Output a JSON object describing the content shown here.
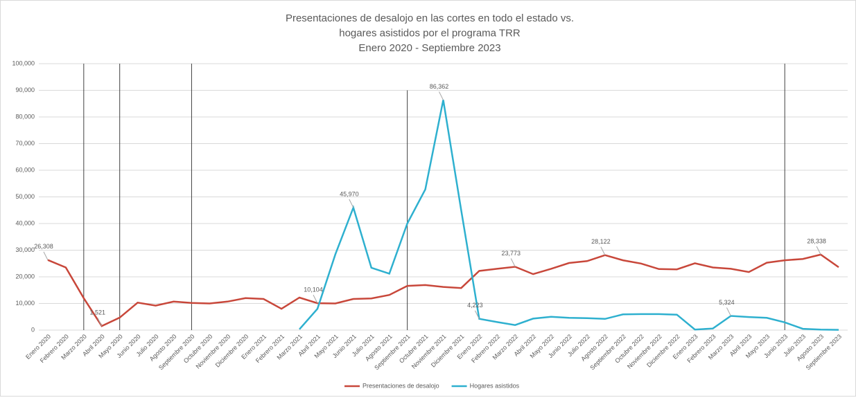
{
  "chart_data": {
    "type": "line",
    "title": [
      "Presentaciones de desalojo en las cortes en todo el estado vs.",
      "hogares asistidos por el programa TRR",
      "Enero 2020 - Septiembre 2023"
    ],
    "categories": [
      "Enero 2020",
      "Febrero 2020",
      "Marzo 2020",
      "Abril 2020",
      "Mayo 2020",
      "Junio 2020",
      "Julio 2020",
      "Agosto 2020",
      "Septiembre 2020",
      "Octubre 2020",
      "Noviembre 2020",
      "Diciembre 2020",
      "Enero 2021",
      "Febrero 2021",
      "Marzo 2021",
      "Abril 2021",
      "Mayo 2021",
      "Junio 2021",
      "Julio 2021",
      "Agosto 2021",
      "Septiembre 2021",
      "Octubre 2021",
      "Noviembre 2021",
      "Diciembre 2021",
      "Enero 2022",
      "Febrero 2022",
      "Marzo 2022",
      "Abril 2022",
      "Mayo 2022",
      "Junio 2022",
      "Julio 2022",
      "Agosto 2022",
      "Septiembre 2022",
      "Octubre 2022",
      "Noviembre 2022",
      "Diciembre 2022",
      "Enero 2023",
      "Febrero 2023",
      "Marzo 2023",
      "Abril 2023",
      "Mayo 2023",
      "Junio 2023",
      "Julio 2023",
      "Agosto 2023",
      "Septiembre 2023"
    ],
    "series": [
      {
        "name": "Presentaciones de desalojo",
        "color": "#c8473a",
        "values": [
          26308,
          23500,
          12000,
          1521,
          4700,
          10300,
          9200,
          10700,
          10200,
          10000,
          10700,
          12000,
          11700,
          8000,
          12200,
          10104,
          10000,
          11700,
          11900,
          13200,
          16600,
          16900,
          16200,
          15800,
          22200,
          23000,
          23773,
          21000,
          23000,
          25200,
          25900,
          28122,
          26200,
          25000,
          22900,
          22800,
          25100,
          23500,
          23000,
          21800,
          25300,
          26200,
          26700,
          28338,
          23600
        ],
        "value_labels": [
          "26,308",
          null,
          null,
          "1,521",
          null,
          null,
          null,
          null,
          null,
          null,
          null,
          null,
          null,
          null,
          null,
          "10,104",
          null,
          null,
          null,
          null,
          null,
          null,
          null,
          null,
          null,
          null,
          "23,773",
          null,
          null,
          null,
          null,
          "28,122",
          null,
          null,
          null,
          null,
          null,
          null,
          null,
          null,
          null,
          null,
          null,
          "28,338",
          null
        ]
      },
      {
        "name": "Hogares asistidos",
        "color": "#2eb0cf",
        "values": [
          null,
          null,
          null,
          null,
          null,
          null,
          null,
          null,
          null,
          null,
          null,
          null,
          null,
          null,
          300,
          8000,
          28500,
          45970,
          23400,
          21200,
          40000,
          52800,
          86362,
          45000,
          4223,
          3000,
          1900,
          4300,
          5000,
          4600,
          4500,
          4200,
          5900,
          6000,
          6000,
          5800,
          200,
          600,
          5324,
          4900,
          4600,
          2900,
          500,
          200,
          100
        ],
        "value_labels": [
          null,
          null,
          null,
          null,
          null,
          null,
          null,
          null,
          null,
          null,
          null,
          null,
          null,
          null,
          null,
          null,
          null,
          "45,970",
          null,
          null,
          null,
          null,
          "86,362",
          null,
          "4,223",
          null,
          null,
          null,
          null,
          null,
          null,
          null,
          null,
          null,
          null,
          null,
          null,
          null,
          "5,324",
          null,
          null,
          null,
          null,
          null,
          null
        ]
      }
    ],
    "reference_lines": [
      {
        "x": "Marzo 2020",
        "top": 100000
      },
      {
        "x": "Mayo 2020",
        "top": 100000
      },
      {
        "x": "Septiembre 2020",
        "top": 100000
      },
      {
        "x": "Septiembre 2021",
        "top": 90000
      },
      {
        "x": "Junio 2023",
        "top": 100000
      }
    ],
    "ylim": [
      0,
      100000
    ],
    "yticks": [
      0,
      {
        "value": 10000,
        "label": "10,000"
      },
      {
        "value": 20000,
        "label": "20,000"
      },
      {
        "value": 30000,
        "label": "30,000"
      },
      {
        "value": 40000,
        "label": "40,000"
      },
      {
        "value": 50000,
        "label": "50,000"
      },
      {
        "value": 60000,
        "label": "60,000"
      },
      {
        "value": 70000,
        "label": "70,000"
      },
      {
        "value": 80000,
        "label": "80,000"
      },
      {
        "value": 90000,
        "label": "90,000"
      },
      {
        "value": 100000,
        "label": "100,000"
      }
    ],
    "grid": true,
    "legend": "bottom"
  }
}
